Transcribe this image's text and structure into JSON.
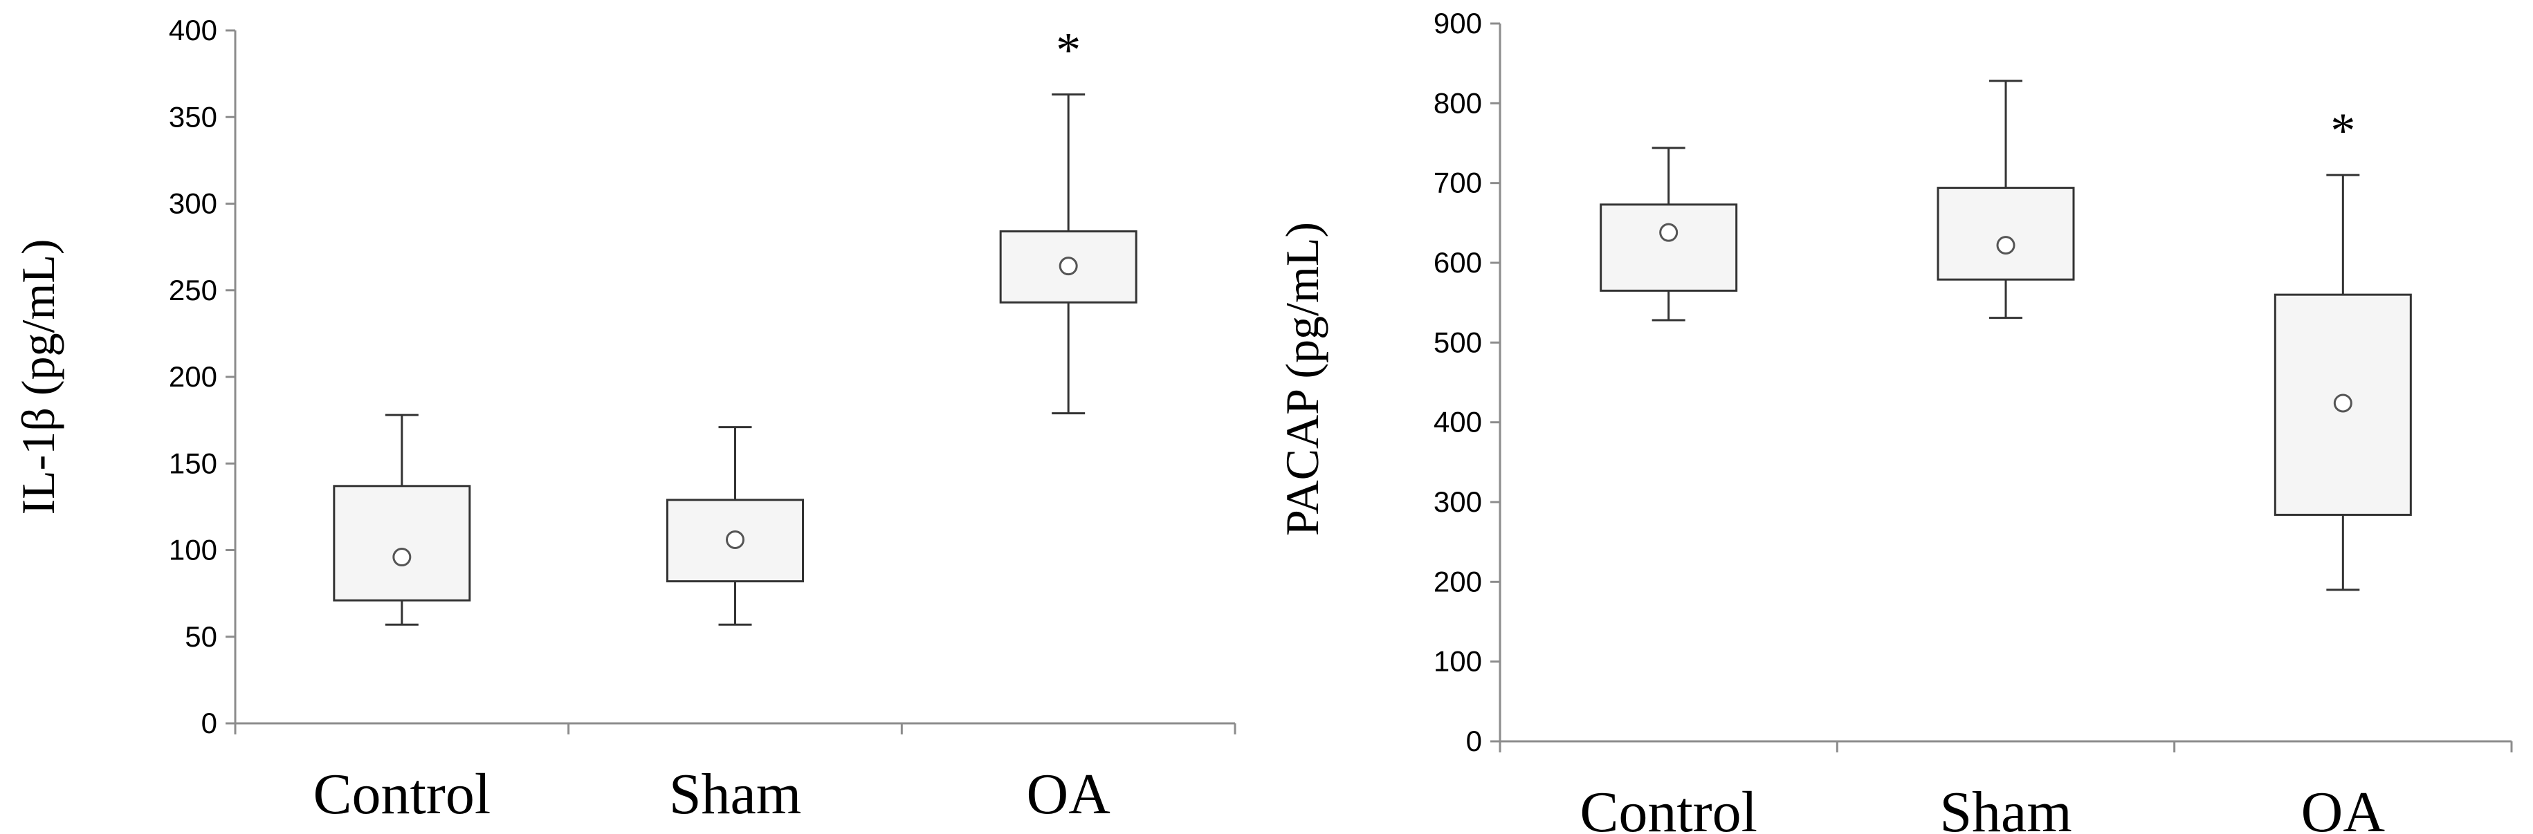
{
  "chart_data": [
    {
      "type": "box",
      "ylabel": "IL-1β (pg/mL)",
      "xlabel": "",
      "title": "",
      "ylim": [
        0,
        400
      ],
      "yticks": [
        "0",
        "50",
        "100",
        "150",
        "200",
        "250",
        "300",
        "350",
        "400"
      ],
      "categories": [
        "Control",
        "Sham",
        "OA"
      ],
      "boxes": [
        {
          "category": "Control",
          "whisker_low": 57,
          "q1": 71,
          "mean": 96,
          "q3": 137,
          "whisker_high": 178,
          "significance": ""
        },
        {
          "category": "Sham",
          "whisker_low": 57,
          "q1": 82,
          "mean": 106,
          "q3": 129,
          "whisker_high": 171,
          "significance": ""
        },
        {
          "category": "OA",
          "whisker_low": 179,
          "q1": 243,
          "mean": 264,
          "q3": 284,
          "whisker_high": 363,
          "significance": "*"
        }
      ],
      "grid": false,
      "box_fill": "#f5f5f5",
      "line_color": "#333333",
      "axis_color": "#8c8c8c"
    },
    {
      "type": "box",
      "ylabel": "PACAP (pg/mL)",
      "xlabel": "",
      "title": "",
      "ylim": [
        0,
        900
      ],
      "yticks": [
        "0",
        "100",
        "200",
        "300",
        "400",
        "500",
        "600",
        "700",
        "800",
        "900"
      ],
      "categories": [
        "Control",
        "Sham",
        "OA"
      ],
      "boxes": [
        {
          "category": "Control",
          "whisker_low": 528,
          "q1": 565,
          "mean": 638,
          "q3": 673,
          "whisker_high": 744,
          "significance": ""
        },
        {
          "category": "Sham",
          "whisker_low": 531,
          "q1": 579,
          "mean": 622,
          "q3": 694,
          "whisker_high": 828,
          "significance": ""
        },
        {
          "category": "OA",
          "whisker_low": 190,
          "q1": 284,
          "mean": 424,
          "q3": 560,
          "whisker_high": 710,
          "significance": "*"
        }
      ],
      "grid": false,
      "box_fill": "#f5f5f5",
      "line_color": "#333333",
      "axis_color": "#8c8c8c"
    }
  ]
}
